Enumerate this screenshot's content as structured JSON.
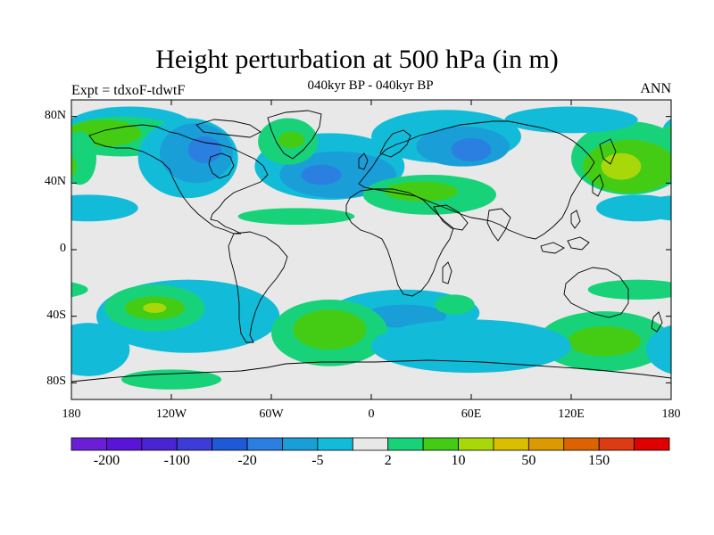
{
  "title": "Height perturbation at 500 hPa (in m)",
  "subtitle": "040kyr BP - 040kyr BP",
  "left_label": "Expt = tdxoF-tdwtF",
  "right_label": "ANN",
  "lat_ticks": [
    {
      "value": 80,
      "label": "80N"
    },
    {
      "value": 40,
      "label": "40N"
    },
    {
      "value": 0,
      "label": "0"
    },
    {
      "value": -40,
      "label": "40S"
    },
    {
      "value": -80,
      "label": "80S"
    }
  ],
  "lon_ticks": [
    {
      "value": -180,
      "label": "180"
    },
    {
      "value": -120,
      "label": "120W"
    },
    {
      "value": -60,
      "label": "60W"
    },
    {
      "value": 0,
      "label": "0"
    },
    {
      "value": 60,
      "label": "60E"
    },
    {
      "value": 120,
      "label": "120E"
    },
    {
      "value": 180,
      "label": "180"
    }
  ],
  "colorbar": {
    "colors": [
      "#6a1fd6",
      "#5a14d8",
      "#4a24d2",
      "#3c3cd8",
      "#1e5ad8",
      "#2a7fe0",
      "#1a9ed8",
      "#12bcd8",
      "#e8e8e8",
      "#18d27a",
      "#44cc14",
      "#a8d80a",
      "#d8c000",
      "#dc9a00",
      "#dc6400",
      "#dc3c14",
      "#e00000"
    ],
    "labels": [
      {
        "boundary": 1,
        "text": "-200"
      },
      {
        "boundary": 3,
        "text": "-100"
      },
      {
        "boundary": 5,
        "text": "-20"
      },
      {
        "boundary": 7,
        "text": "-5"
      },
      {
        "boundary": 9,
        "text": "2"
      },
      {
        "boundary": 11,
        "text": "10"
      },
      {
        "boundary": 13,
        "text": "50"
      },
      {
        "boundary": 15,
        "text": "150"
      }
    ]
  },
  "map_background": "#e8e8e8",
  "anomaly_fields": [
    {
      "color": "#12bcd8",
      "lon": -145,
      "lat": 72,
      "rx": 40,
      "ry": 14
    },
    {
      "color": "#18d27a",
      "lon": -150,
      "lat": 68,
      "rx": 38,
      "ry": 12
    },
    {
      "color": "#44cc14",
      "lon": -160,
      "lat": 70,
      "rx": 22,
      "ry": 8
    },
    {
      "color": "#18d27a",
      "lon": -175,
      "lat": 55,
      "rx": 10,
      "ry": 16
    },
    {
      "color": "#44cc14",
      "lon": -177,
      "lat": 55,
      "rx": 6,
      "ry": 10
    },
    {
      "color": "#12bcd8",
      "lon": -110,
      "lat": 55,
      "rx": 30,
      "ry": 24
    },
    {
      "color": "#1a9ed8",
      "lon": -105,
      "lat": 58,
      "rx": 22,
      "ry": 18
    },
    {
      "color": "#2a7fe0",
      "lon": -100,
      "lat": 60,
      "rx": 10,
      "ry": 8
    },
    {
      "color": "#12bcd8",
      "lon": -25,
      "lat": 50,
      "rx": 45,
      "ry": 20
    },
    {
      "color": "#1a9ed8",
      "lon": -20,
      "lat": 45,
      "rx": 35,
      "ry": 14
    },
    {
      "color": "#2a7fe0",
      "lon": -30,
      "lat": 45,
      "rx": 12,
      "ry": 6
    },
    {
      "color": "#18d27a",
      "lon": -50,
      "lat": 65,
      "rx": 18,
      "ry": 14
    },
    {
      "color": "#44cc14",
      "lon": -48,
      "lat": 66,
      "rx": 8,
      "ry": 5
    },
    {
      "color": "#12bcd8",
      "lon": 45,
      "lat": 68,
      "rx": 45,
      "ry": 16
    },
    {
      "color": "#1a9ed8",
      "lon": 55,
      "lat": 62,
      "rx": 28,
      "ry": 12
    },
    {
      "color": "#2a7fe0",
      "lon": 60,
      "lat": 60,
      "rx": 12,
      "ry": 7
    },
    {
      "color": "#18d27a",
      "lon": 35,
      "lat": 33,
      "rx": 40,
      "ry": 12
    },
    {
      "color": "#44cc14",
      "lon": 30,
      "lat": 35,
      "rx": 22,
      "ry": 6
    },
    {
      "color": "#18d27a",
      "lon": 155,
      "lat": 55,
      "rx": 35,
      "ry": 22
    },
    {
      "color": "#44cc14",
      "lon": 155,
      "lat": 50,
      "rx": 28,
      "ry": 16
    },
    {
      "color": "#a8d80a",
      "lon": 150,
      "lat": 50,
      "rx": 12,
      "ry": 8
    },
    {
      "color": "#12bcd8",
      "lon": 120,
      "lat": 78,
      "rx": 40,
      "ry": 8
    },
    {
      "color": "#12bcd8",
      "lon": -170,
      "lat": 25,
      "rx": 30,
      "ry": 8
    },
    {
      "color": "#12bcd8",
      "lon": 160,
      "lat": 25,
      "rx": 25,
      "ry": 8
    },
    {
      "color": "#18d27a",
      "lon": -45,
      "lat": 20,
      "rx": 35,
      "ry": 5
    },
    {
      "color": "#12bcd8",
      "lon": -110,
      "lat": -40,
      "rx": 55,
      "ry": 22
    },
    {
      "color": "#18d27a",
      "lon": -130,
      "lat": -35,
      "rx": 30,
      "ry": 14
    },
    {
      "color": "#44cc14",
      "lon": -130,
      "lat": -35,
      "rx": 18,
      "ry": 7
    },
    {
      "color": "#a8d80a",
      "lon": -130,
      "lat": -35,
      "rx": 7,
      "ry": 3
    },
    {
      "color": "#12bcd8",
      "lon": 20,
      "lat": -38,
      "rx": 45,
      "ry": 14
    },
    {
      "color": "#1a9ed8",
      "lon": 20,
      "lat": -40,
      "rx": 25,
      "ry": 7
    },
    {
      "color": "#18d27a",
      "lon": -25,
      "lat": -50,
      "rx": 35,
      "ry": 20
    },
    {
      "color": "#44cc14",
      "lon": -25,
      "lat": -48,
      "rx": 22,
      "ry": 12
    },
    {
      "color": "#18d27a",
      "lon": 140,
      "lat": -55,
      "rx": 40,
      "ry": 18
    },
    {
      "color": "#44cc14",
      "lon": 140,
      "lat": -55,
      "rx": 22,
      "ry": 9
    },
    {
      "color": "#12bcd8",
      "lon": 60,
      "lat": -58,
      "rx": 60,
      "ry": 16
    },
    {
      "color": "#12bcd8",
      "lon": -170,
      "lat": -60,
      "rx": 25,
      "ry": 16
    },
    {
      "color": "#18d27a",
      "lon": 50,
      "lat": -33,
      "rx": 12,
      "ry": 6
    },
    {
      "color": "#18d27a",
      "lon": -120,
      "lat": -78,
      "rx": 30,
      "ry": 6
    },
    {
      "color": "#18d27a",
      "lon": 160,
      "lat": -24,
      "rx": 30,
      "ry": 6
    }
  ]
}
